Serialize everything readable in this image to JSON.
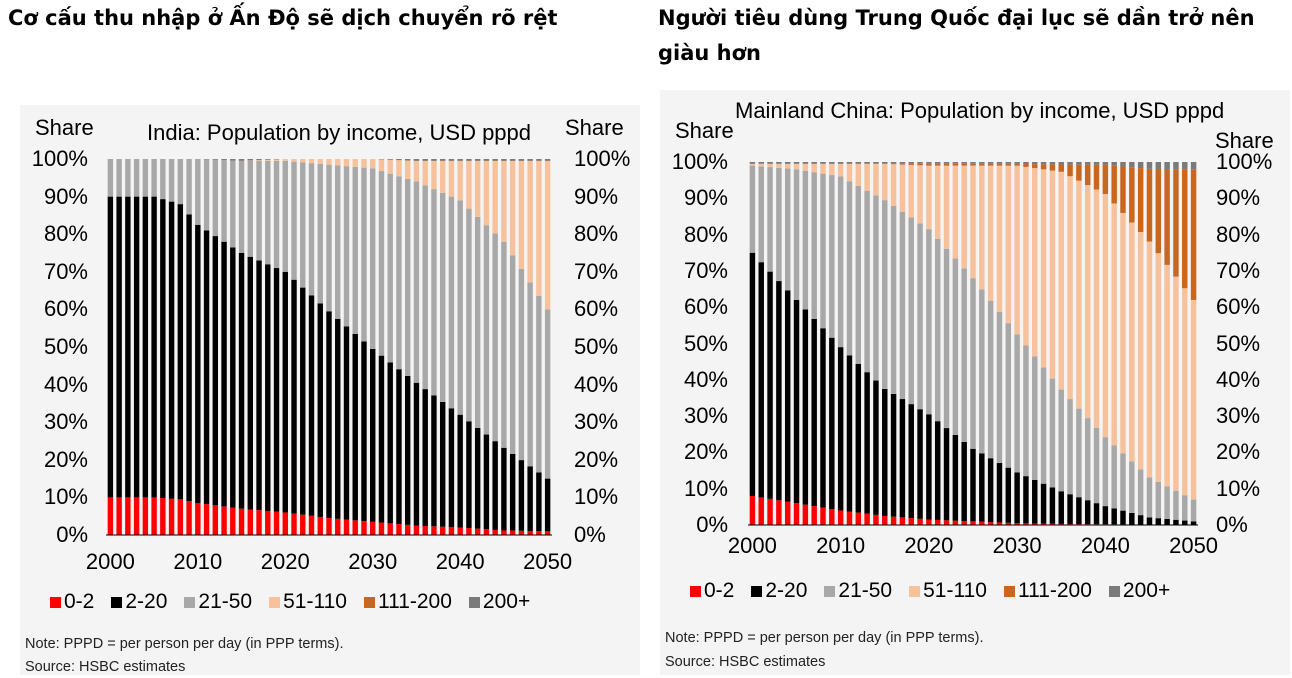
{
  "headings": {
    "left": "Cơ cấu thu nhập ở Ấn Độ sẽ dịch chuyển rõ rệt",
    "right": "Người tiêu dùng Trung Quốc đại lục sẽ dần trở nên giàu hơn"
  },
  "legend": [
    {
      "label": "0-2",
      "color": "#ff0000"
    },
    {
      "label": "2-20",
      "color": "#000000"
    },
    {
      "label": "21-50",
      "color": "#a8a8a8"
    },
    {
      "label": "51-110",
      "color": "#f7c29b"
    },
    {
      "label": "111-200",
      "color": "#c9671f"
    },
    {
      "label": "200+",
      "color": "#7a7a7a"
    }
  ],
  "axis": {
    "share_label": "Share",
    "y_ticks": [
      "0%",
      "10%",
      "20%",
      "30%",
      "40%",
      "50%",
      "60%",
      "70%",
      "80%",
      "90%",
      "100%"
    ],
    "x_ticks": [
      "2000",
      "2010",
      "2020",
      "2030",
      "2040",
      "2050"
    ]
  },
  "notes": {
    "line1": "Note: PPPD = per person per day (in PPP terms).",
    "line2": "Source: HSBC estimates"
  },
  "chart_data": [
    {
      "type": "bar",
      "stacked": true,
      "title": "India: Population by income, USD pppd",
      "ylabel": "Share",
      "ylim": [
        0,
        100
      ],
      "xlim": [
        2000,
        2050
      ],
      "x_interval": 1,
      "legend_position": "bottom",
      "series_names": [
        "0-2",
        "2-20",
        "21-50",
        "51-110",
        "111-200",
        "200+"
      ],
      "anchors": {
        "years": [
          2000,
          2005,
          2008,
          2010,
          2015,
          2020,
          2025,
          2030,
          2035,
          2040,
          2045,
          2050
        ],
        "s0_2": [
          10,
          10,
          9.5,
          8.5,
          7,
          6,
          4.5,
          3.5,
          2.5,
          2,
          1.2,
          1
        ],
        "s2_20": [
          80,
          80,
          78.5,
          74,
          68,
          64,
          55,
          46,
          38,
          30,
          22,
          14
        ],
        "s21_50": [
          10,
          10,
          12,
          17.5,
          24.5,
          29.5,
          39,
          48,
          53.5,
          57,
          54.8,
          45
        ],
        "s51_110": [
          0,
          0,
          0,
          0,
          0,
          0.5,
          1.5,
          2.5,
          5.5,
          10.5,
          21.5,
          39.5
        ],
        "s111_200": [
          0,
          0,
          0,
          0,
          0,
          0,
          0,
          0,
          0,
          0,
          0,
          0
        ],
        "s200p": [
          0,
          0,
          0,
          0,
          0.5,
          0,
          0,
          0,
          0.5,
          0.5,
          0.5,
          0.5
        ]
      }
    },
    {
      "type": "bar",
      "stacked": true,
      "title": "Mainland China: Population by income, USD pppd",
      "ylabel": "Share",
      "ylim": [
        0,
        100
      ],
      "xlim": [
        2000,
        2050
      ],
      "x_interval": 1,
      "legend_position": "bottom",
      "series_names": [
        "0-2",
        "2-20",
        "21-50",
        "51-110",
        "111-200",
        "200+"
      ],
      "anchors": {
        "years": [
          2000,
          2005,
          2010,
          2015,
          2020,
          2025,
          2030,
          2035,
          2040,
          2045,
          2050
        ],
        "s0_2": [
          8,
          6,
          4,
          2.5,
          1.5,
          1,
          0.5,
          0.3,
          0.2,
          0.1,
          0
        ],
        "s2_20": [
          67,
          56,
          45,
          35,
          29,
          20,
          14,
          9,
          5,
          2,
          1
        ],
        "s21_50": [
          24,
          36,
          47,
          52,
          51,
          47,
          38,
          28,
          19,
          11,
          6
        ],
        "s51_110": [
          0.5,
          1.5,
          3.5,
          10,
          17.5,
          31,
          46.5,
          60,
          67,
          65,
          55
        ],
        "s111_200": [
          0,
          0,
          0,
          0,
          0.5,
          0.5,
          0.5,
          2,
          8,
          20,
          36
        ],
        "s200p": [
          0.5,
          0.5,
          0.5,
          0.5,
          0.5,
          0.5,
          0.5,
          0.7,
          0.8,
          1.9,
          2
        ]
      }
    }
  ]
}
